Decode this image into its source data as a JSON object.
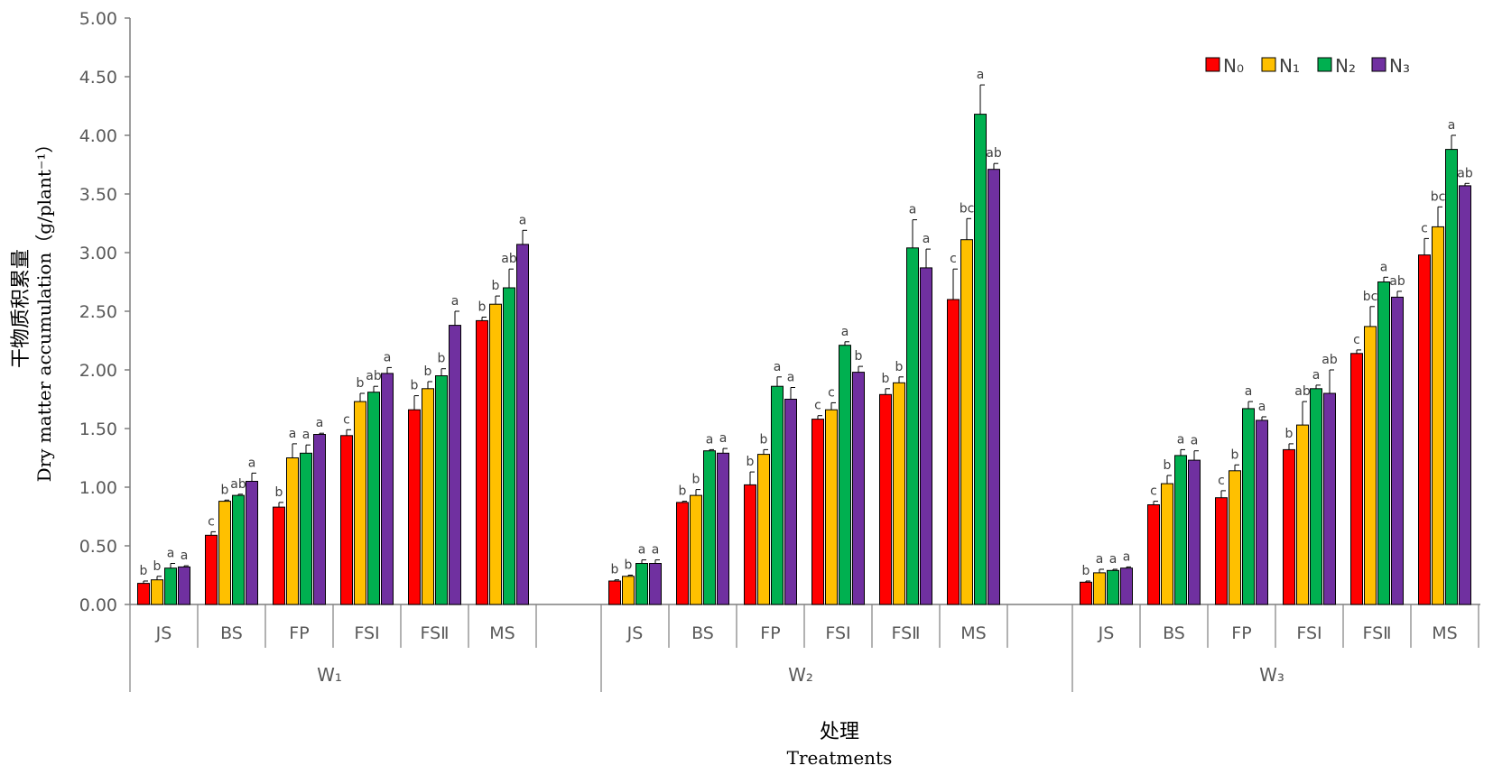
{
  "chart_data": {
    "type": "bar",
    "title": "",
    "ylabel_zh": "干物质积累量",
    "ylabel_en": "Dry matter accumulation（g/plant⁻¹）",
    "xlabel_zh": "处理",
    "xlabel_en": "Treatments",
    "ylim": [
      0,
      5
    ],
    "y_ticks": [
      "0.00",
      "0.50",
      "1.00",
      "1.50",
      "2.00",
      "2.50",
      "3.00",
      "3.50",
      "4.00",
      "4.50",
      "5.00"
    ],
    "grid": false,
    "legend_position": "top-right",
    "groups": [
      {
        "label": "W₁",
        "categories": [
          "JS",
          "BS",
          "FP",
          "FSⅠ",
          "FSⅡ",
          "MS"
        ]
      },
      {
        "label": "W₂",
        "categories": [
          "JS",
          "BS",
          "FP",
          "FSⅠ",
          "FSⅡ",
          "MS"
        ]
      },
      {
        "label": "W₃",
        "categories": [
          "JS",
          "BS",
          "FP",
          "FSⅠ",
          "FSⅡ",
          "MS"
        ]
      }
    ],
    "series": [
      {
        "name": "N₀",
        "color": "#ff0000",
        "values": [
          [
            0.18,
            0.59,
            0.83,
            1.44,
            1.66,
            2.42
          ],
          [
            0.2,
            0.87,
            1.02,
            1.58,
            1.79,
            2.6
          ],
          [
            0.19,
            0.85,
            0.91,
            1.32,
            2.14,
            2.98
          ]
        ],
        "errors": [
          [
            0.02,
            0.03,
            0.04,
            0.05,
            0.12,
            0.03
          ],
          [
            0.01,
            0.01,
            0.11,
            0.03,
            0.05,
            0.26
          ],
          [
            0.01,
            0.03,
            0.06,
            0.05,
            0.03,
            0.14
          ]
        ],
        "sig": [
          [
            "b",
            "c",
            "b",
            "c",
            "b",
            "b"
          ],
          [
            "b",
            "b",
            "b",
            "c",
            "b",
            "c"
          ],
          [
            "b",
            "c",
            "c",
            "b",
            "c",
            "c"
          ]
        ]
      },
      {
        "name": "N₁",
        "color": "#ffc000",
        "values": [
          [
            0.21,
            0.88,
            1.25,
            1.73,
            1.84,
            2.56
          ],
          [
            0.24,
            0.93,
            1.28,
            1.66,
            1.89,
            3.11
          ],
          [
            0.27,
            1.03,
            1.14,
            1.53,
            2.37,
            3.22
          ]
        ],
        "errors": [
          [
            0.03,
            0.01,
            0.12,
            0.07,
            0.06,
            0.07
          ],
          [
            0.01,
            0.05,
            0.04,
            0.06,
            0.05,
            0.18
          ],
          [
            0.03,
            0.07,
            0.05,
            0.2,
            0.17,
            0.17
          ]
        ],
        "sig": [
          [
            "b",
            "b",
            "a",
            "b",
            "b",
            "b"
          ],
          [
            "b",
            "b",
            "b",
            "c",
            "b",
            "bc"
          ],
          [
            "a",
            "b",
            "b",
            "ab",
            "bc",
            "bc"
          ]
        ]
      },
      {
        "name": "N₂",
        "color": "#00b050",
        "values": [
          [
            0.31,
            0.93,
            1.29,
            1.81,
            1.95,
            2.7
          ],
          [
            0.35,
            1.31,
            1.86,
            2.21,
            3.04,
            4.18
          ],
          [
            0.29,
            1.27,
            1.67,
            1.84,
            2.75,
            3.88
          ]
        ],
        "errors": [
          [
            0.04,
            0.01,
            0.07,
            0.05,
            0.06,
            0.16
          ],
          [
            0.03,
            0.01,
            0.08,
            0.03,
            0.24,
            0.25
          ],
          [
            0.01,
            0.05,
            0.06,
            0.03,
            0.04,
            0.12
          ]
        ],
        "sig": [
          [
            "a",
            "ab",
            "a",
            "ab",
            "b",
            "ab"
          ],
          [
            "a",
            "a",
            "a",
            "a",
            "a",
            "a"
          ],
          [
            "a",
            "a",
            "a",
            "a",
            "a",
            "a"
          ]
        ]
      },
      {
        "name": "N₃",
        "color": "#7030a0",
        "values": [
          [
            0.32,
            1.05,
            1.45,
            1.97,
            2.38,
            3.07
          ],
          [
            0.35,
            1.29,
            1.75,
            1.98,
            2.87,
            3.71
          ],
          [
            0.31,
            1.23,
            1.57,
            1.8,
            2.62,
            3.57
          ]
        ],
        "errors": [
          [
            0.01,
            0.07,
            0.01,
            0.05,
            0.12,
            0.12
          ],
          [
            0.03,
            0.04,
            0.1,
            0.05,
            0.16,
            0.05
          ],
          [
            0.01,
            0.08,
            0.03,
            0.2,
            0.05,
            0.02
          ]
        ],
        "sig": [
          [
            "a",
            "a",
            "a",
            "a",
            "a",
            "a"
          ],
          [
            "a",
            "a",
            "a",
            "b",
            "a",
            "ab"
          ],
          [
            "a",
            "a",
            "a",
            "ab",
            "ab",
            "ab"
          ]
        ]
      }
    ]
  }
}
